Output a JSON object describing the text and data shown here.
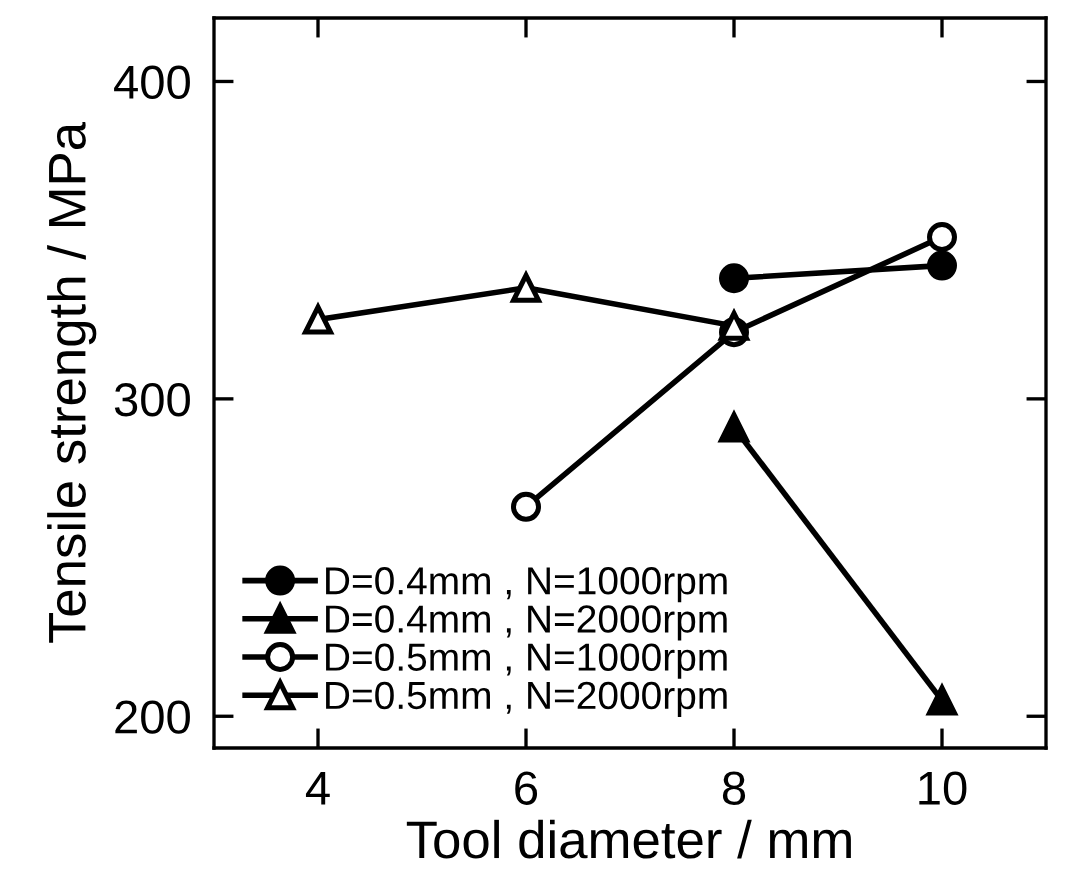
{
  "chart_data": {
    "type": "line",
    "xlabel": "Tool diameter / mm",
    "ylabel": "Tensile strength / MPa",
    "xlim": [
      3,
      11
    ],
    "xticks": [
      4,
      6,
      8,
      10
    ],
    "ylim": [
      190,
      420
    ],
    "yticks": [
      200,
      300,
      400
    ],
    "grid": false,
    "legend": "bottom left",
    "line_style": "solid",
    "series": [
      {
        "name": "D=0.4mm , N=1000rpm",
        "color": "#000000",
        "marker": "circle",
        "x": [
          8,
          10
        ],
        "values": [
          338,
          342
        ]
      },
      {
        "name": "D=0.4mm , N=2000rpm",
        "color": "#000000",
        "marker": "triangle",
        "x": [
          8,
          10
        ],
        "values": [
          291,
          205
        ]
      },
      {
        "name": "D=0.5mm , N=1000rpm",
        "color": "#000000",
        "marker": "circle-open",
        "x": [
          6,
          8,
          10
        ],
        "values": [
          266,
          321,
          351
        ]
      },
      {
        "name": "D=0.5mm , N=2000rpm",
        "color": "#000000",
        "marker": "triangle-open",
        "x": [
          4,
          6,
          8
        ],
        "values": [
          325,
          335,
          323
        ]
      }
    ]
  }
}
